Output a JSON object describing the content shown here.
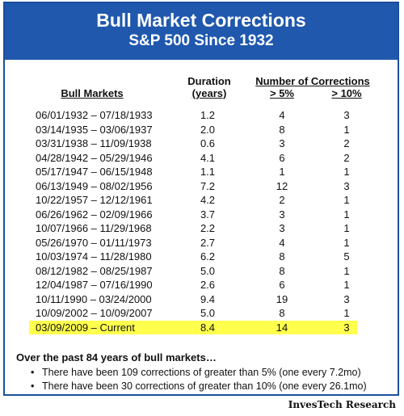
{
  "header": {
    "title": "Bull Market Corrections",
    "subtitle": "S&P 500 Since 1932"
  },
  "columns": {
    "bull_markets": "Bull Markets",
    "duration_l1": "Duration",
    "duration_l2": "(years)",
    "num_corrections": "Number of Corrections",
    "gt5": "> 5%",
    "gt10": "> 10%"
  },
  "chart_data": {
    "type": "table",
    "title": "Bull Market Corrections",
    "subtitle": "S&P 500 Since 1932",
    "columns": [
      "Bull Markets",
      "Duration (years)",
      "> 5%",
      "> 10%"
    ],
    "rows": [
      {
        "range": "06/01/1932 – 07/18/1933",
        "duration": "1.2",
        "gt5": "4",
        "gt10": "3"
      },
      {
        "range": "03/14/1935 – 03/06/1937",
        "duration": "2.0",
        "gt5": "8",
        "gt10": "1"
      },
      {
        "range": "03/31/1938 – 11/09/1938",
        "duration": "0.6",
        "gt5": "3",
        "gt10": "2"
      },
      {
        "range": "04/28/1942 – 05/29/1946",
        "duration": "4.1",
        "gt5": "6",
        "gt10": "2"
      },
      {
        "range": "05/17/1947 – 06/15/1948",
        "duration": "1.1",
        "gt5": "1",
        "gt10": "1"
      },
      {
        "range": "06/13/1949 – 08/02/1956",
        "duration": "7.2",
        "gt5": "12",
        "gt10": "3"
      },
      {
        "range": "10/22/1957 – 12/12/1961",
        "duration": "4.2",
        "gt5": "2",
        "gt10": "1"
      },
      {
        "range": "06/26/1962 – 02/09/1966",
        "duration": "3.7",
        "gt5": "3",
        "gt10": "1"
      },
      {
        "range": "10/07/1966 – 11/29/1968",
        "duration": "2.2",
        "gt5": "3",
        "gt10": "1"
      },
      {
        "range": "05/26/1970 – 01/11/1973",
        "duration": "2.7",
        "gt5": "4",
        "gt10": "1"
      },
      {
        "range": "10/03/1974 – 11/28/1980",
        "duration": "6.2",
        "gt5": "8",
        "gt10": "5"
      },
      {
        "range": "08/12/1982 – 08/25/1987",
        "duration": "5.0",
        "gt5": "8",
        "gt10": "1"
      },
      {
        "range": "12/04/1987 – 07/16/1990",
        "duration": "2.6",
        "gt5": "6",
        "gt10": "1"
      },
      {
        "range": "10/11/1990 – 03/24/2000",
        "duration": "9.4",
        "gt5": "19",
        "gt10": "3"
      },
      {
        "range": "10/09/2002 – 10/09/2007",
        "duration": "5.0",
        "gt5": "8",
        "gt10": "1"
      },
      {
        "range": "03/09/2009 – Current",
        "duration": "8.4",
        "gt5": "14",
        "gt10": "3",
        "highlight": true
      }
    ],
    "highlight_color": "#ffff4d"
  },
  "notes": {
    "lead": "Over the past 84 years of bull markets…",
    "bullets": [
      "There have been 109 corrections of greater than 5% (one every 7.2mo)",
      "There have been 30 corrections of greater than 10% (one every 26.1mo)"
    ]
  },
  "source": "InvesTech Research",
  "colors": {
    "header_bg": "#1f58ad",
    "border": "#1c4f9c",
    "highlight": "#ffff4d"
  }
}
